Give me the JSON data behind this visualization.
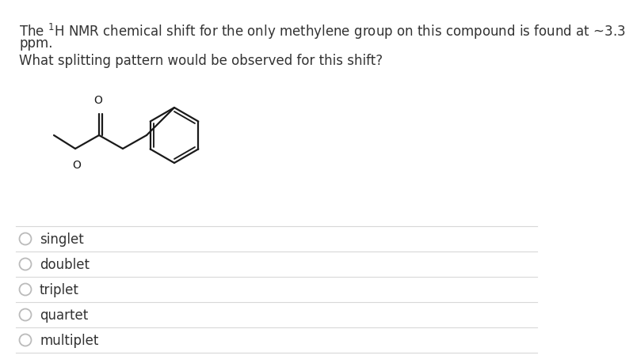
{
  "title_line1": "The $^{1}$H NMR chemical shift for the only methylene group on this compound is found at ~3.3",
  "title_line2": "ppm.",
  "question": "What splitting pattern would be observed for this shift?",
  "options": [
    "singlet",
    "doublet",
    "triplet",
    "quartet",
    "multiplet"
  ],
  "bg_color": "#ffffff",
  "text_color": "#333333",
  "radio_color": "#bbbbbb",
  "line_color": "#d8d8d8",
  "font_size_title": 12,
  "font_size_question": 12,
  "font_size_options": 12,
  "struct_scale": 1.0
}
